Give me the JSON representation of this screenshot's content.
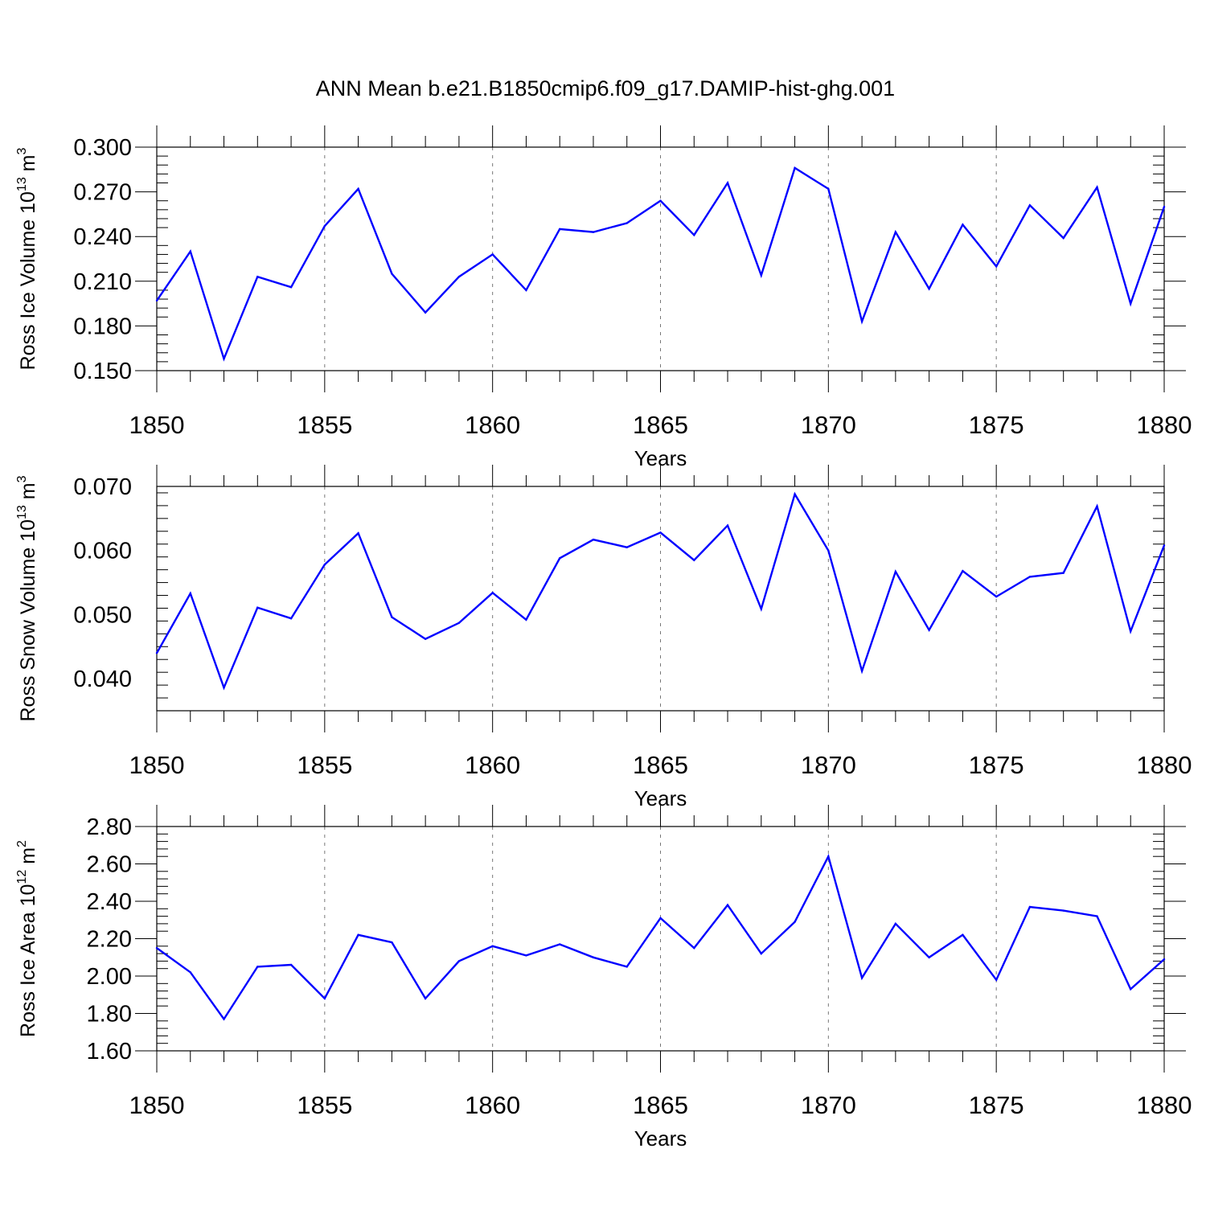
{
  "title": "ANN Mean b.e21.B1850cmip6.f09_g17.DAMIP-hist-ghg.001",
  "chart_data": [
    {
      "type": "line",
      "title": "ANN Mean b.e21.B1850cmip6.f09_g17.DAMIP-hist-ghg.001",
      "ylabel_main": "Ross Ice Volume 10",
      "ylabel_exp": "13",
      "ylabel_unit": "m",
      "ylabel_unit_exp": "3",
      "xlabel": "Years",
      "xlim": [
        1850,
        1880
      ],
      "ylim": [
        0.15,
        0.3
      ],
      "x_ticks": [
        1850,
        1855,
        1860,
        1865,
        1870,
        1875,
        1880
      ],
      "y_ticks": [
        "0.150",
        "0.180",
        "0.210",
        "0.240",
        "0.270",
        "0.300"
      ],
      "y_tick_values": [
        0.15,
        0.18,
        0.21,
        0.24,
        0.27,
        0.3
      ],
      "color": "#0000ff",
      "x": [
        1850,
        1851,
        1852,
        1853,
        1854,
        1855,
        1856,
        1857,
        1858,
        1859,
        1860,
        1861,
        1862,
        1863,
        1864,
        1865,
        1866,
        1867,
        1868,
        1869,
        1870,
        1871,
        1872,
        1873,
        1874,
        1875,
        1876,
        1877,
        1878,
        1879,
        1880
      ],
      "values": [
        0.197,
        0.23,
        0.158,
        0.213,
        0.206,
        0.247,
        0.272,
        0.215,
        0.189,
        0.213,
        0.228,
        0.204,
        0.245,
        0.243,
        0.249,
        0.264,
        0.241,
        0.276,
        0.214,
        0.286,
        0.272,
        0.183,
        0.243,
        0.205,
        0.248,
        0.22,
        0.261,
        0.239,
        0.273,
        0.195,
        0.26
      ]
    },
    {
      "type": "line",
      "ylabel_main": "Ross Snow Volume 10",
      "ylabel_exp": "13",
      "ylabel_unit": "m",
      "ylabel_unit_exp": "3",
      "xlabel": "Years",
      "xlim": [
        1850,
        1880
      ],
      "ylim": [
        0.035,
        0.07
      ],
      "x_ticks": [
        1850,
        1855,
        1860,
        1865,
        1870,
        1875,
        1880
      ],
      "y_ticks": [
        "0.040",
        "0.050",
        "0.060",
        "0.070"
      ],
      "y_tick_values": [
        0.04,
        0.05,
        0.06,
        0.07
      ],
      "color": "#0000ff",
      "x": [
        1850,
        1851,
        1852,
        1853,
        1854,
        1855,
        1856,
        1857,
        1858,
        1859,
        1860,
        1861,
        1862,
        1863,
        1864,
        1865,
        1866,
        1867,
        1868,
        1869,
        1870,
        1871,
        1872,
        1873,
        1874,
        1875,
        1876,
        1877,
        1878,
        1879,
        1880
      ],
      "values": [
        0.044,
        0.0533,
        0.0386,
        0.0511,
        0.0494,
        0.0578,
        0.0627,
        0.0496,
        0.0462,
        0.0487,
        0.0534,
        0.0492,
        0.0588,
        0.0617,
        0.0605,
        0.0628,
        0.0585,
        0.0639,
        0.0509,
        0.0688,
        0.06,
        0.0412,
        0.0567,
        0.0476,
        0.0568,
        0.0528,
        0.0559,
        0.0565,
        0.0669,
        0.0474,
        0.0608
      ]
    },
    {
      "type": "line",
      "ylabel_main": "Ross Ice Area 10",
      "ylabel_exp": "12",
      "ylabel_unit": "m",
      "ylabel_unit_exp": "2",
      "xlabel": "Years",
      "xlim": [
        1850,
        1880
      ],
      "ylim": [
        1.6,
        2.8
      ],
      "x_ticks": [
        1850,
        1855,
        1860,
        1865,
        1870,
        1875,
        1880
      ],
      "y_ticks": [
        "1.60",
        "1.80",
        "2.00",
        "2.20",
        "2.40",
        "2.60",
        "2.80"
      ],
      "y_tick_values": [
        1.6,
        1.8,
        2.0,
        2.2,
        2.4,
        2.6,
        2.8
      ],
      "color": "#0000ff",
      "x": [
        1850,
        1851,
        1852,
        1853,
        1854,
        1855,
        1856,
        1857,
        1858,
        1859,
        1860,
        1861,
        1862,
        1863,
        1864,
        1865,
        1866,
        1867,
        1868,
        1869,
        1870,
        1871,
        1872,
        1873,
        1874,
        1875,
        1876,
        1877,
        1878,
        1879,
        1880
      ],
      "values": [
        2.15,
        2.02,
        1.77,
        2.05,
        2.06,
        1.88,
        2.22,
        2.18,
        1.88,
        2.08,
        2.16,
        2.11,
        2.17,
        2.1,
        2.05,
        2.31,
        2.15,
        2.38,
        2.12,
        2.29,
        2.64,
        1.99,
        2.28,
        2.1,
        2.22,
        1.98,
        2.37,
        2.35,
        2.32,
        1.93,
        2.09
      ]
    }
  ]
}
